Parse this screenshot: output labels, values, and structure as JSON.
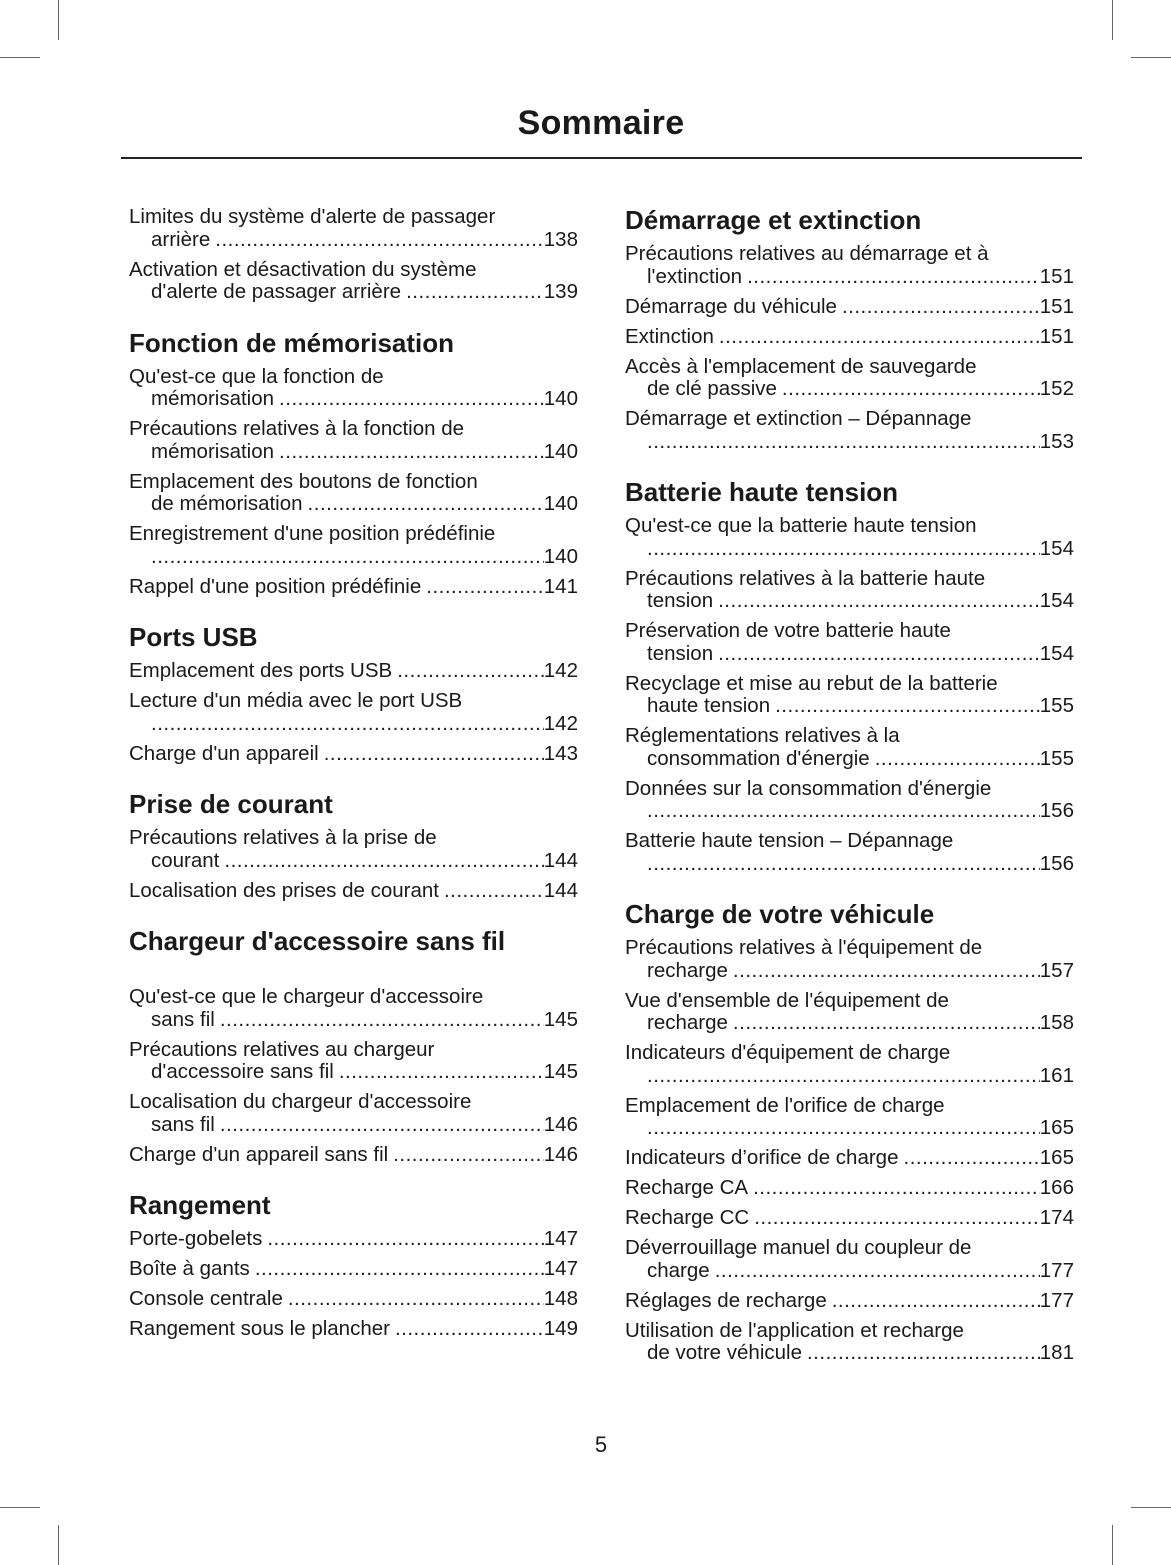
{
  "title": "Sommaire",
  "page_number": "5",
  "columns": [
    [
      {
        "entries": [
          {
            "lines": [
              "Limites du système d'alerte de passager",
              "arrière"
            ],
            "page": "138"
          },
          {
            "lines": [
              "Activation et désactivation du système",
              "d'alerte de passager arrière"
            ],
            "page": "139"
          }
        ]
      },
      {
        "heading": "Fonction de mémorisation",
        "entries": [
          {
            "lines": [
              "Qu'est-ce que la fonction de",
              "mémorisation"
            ],
            "page": "140"
          },
          {
            "lines": [
              "Précautions relatives à la fonction de",
              "mémorisation"
            ],
            "page": "140"
          },
          {
            "lines": [
              "Emplacement des boutons de fonction",
              "de mémorisation"
            ],
            "page": "140"
          },
          {
            "lines": [
              "Enregistrement d'une position prédéfinie",
              ""
            ],
            "page": "140"
          },
          {
            "lines": [
              "Rappel d'une position prédéfinie"
            ],
            "page": "141"
          }
        ]
      },
      {
        "heading": "Ports USB",
        "entries": [
          {
            "lines": [
              "Emplacement des ports USB"
            ],
            "page": "142"
          },
          {
            "lines": [
              "Lecture d'un média avec le port USB",
              ""
            ],
            "page": "142"
          },
          {
            "lines": [
              "Charge d'un appareil"
            ],
            "page": "143"
          }
        ]
      },
      {
        "heading": "Prise de courant",
        "entries": [
          {
            "lines": [
              "Précautions relatives à la prise de",
              "courant"
            ],
            "page": "144"
          },
          {
            "lines": [
              "Localisation des prises de courant"
            ],
            "page": "144"
          }
        ]
      },
      {
        "heading": "Chargeur d'accessoire sans fil",
        "extra_gap": true,
        "entries": [
          {
            "lines": [
              "Qu'est-ce que le chargeur d'accessoire",
              "sans fil"
            ],
            "page": "145"
          },
          {
            "lines": [
              "Précautions relatives au chargeur",
              "d'accessoire sans fil"
            ],
            "page": "145"
          },
          {
            "lines": [
              "Localisation du chargeur d'accessoire",
              "sans fil"
            ],
            "page": "146"
          },
          {
            "lines": [
              "Charge d'un appareil sans fil"
            ],
            "page": "146"
          }
        ]
      },
      {
        "heading": "Rangement",
        "entries": [
          {
            "lines": [
              "Porte-gobelets"
            ],
            "page": "147"
          },
          {
            "lines": [
              "Boîte à gants"
            ],
            "page": "147"
          },
          {
            "lines": [
              "Console centrale"
            ],
            "page": "148"
          },
          {
            "lines": [
              "Rangement sous le plancher"
            ],
            "page": "149"
          }
        ]
      }
    ],
    [
      {
        "heading": "Démarrage et extinction",
        "entries": [
          {
            "lines": [
              "Précautions relatives au démarrage et à",
              "l'extinction"
            ],
            "page": "151"
          },
          {
            "lines": [
              "Démarrage du véhicule"
            ],
            "page": "151"
          },
          {
            "lines": [
              "Extinction"
            ],
            "page": "151"
          },
          {
            "lines": [
              "Accès à l'emplacement de sauvegarde",
              "de clé passive"
            ],
            "page": "152"
          },
          {
            "lines": [
              "Démarrage et extinction – Dépannage",
              ""
            ],
            "page": "153"
          }
        ]
      },
      {
        "heading": "Batterie haute tension",
        "entries": [
          {
            "lines": [
              "Qu'est-ce que la batterie haute tension",
              ""
            ],
            "page": "154"
          },
          {
            "lines": [
              "Précautions relatives à la batterie haute",
              "tension"
            ],
            "page": "154"
          },
          {
            "lines": [
              "Préservation de votre batterie haute",
              "tension"
            ],
            "page": "154"
          },
          {
            "lines": [
              "Recyclage et mise au rebut de la batterie",
              "haute tension"
            ],
            "page": "155"
          },
          {
            "lines": [
              "Réglementations relatives à la",
              "consommation d'énergie"
            ],
            "page": "155"
          },
          {
            "lines": [
              "Données sur la consommation d'énergie",
              ""
            ],
            "page": "156"
          },
          {
            "lines": [
              "Batterie haute tension – Dépannage",
              ""
            ],
            "page": "156"
          }
        ]
      },
      {
        "heading": "Charge de votre véhicule",
        "entries": [
          {
            "lines": [
              "Précautions relatives à l'équipement de",
              "recharge"
            ],
            "page": "157"
          },
          {
            "lines": [
              "Vue d'ensemble de l'équipement de",
              "recharge"
            ],
            "page": "158"
          },
          {
            "lines": [
              "Indicateurs d'équipement de charge",
              ""
            ],
            "page": "161"
          },
          {
            "lines": [
              "Emplacement de l'orifice de charge",
              ""
            ],
            "page": "165"
          },
          {
            "lines": [
              "Indicateurs d’orifice de charge"
            ],
            "page": "165"
          },
          {
            "lines": [
              "Recharge CA"
            ],
            "page": "166"
          },
          {
            "lines": [
              "Recharge CC"
            ],
            "page": "174"
          },
          {
            "lines": [
              "Déverrouillage manuel du coupleur de",
              "charge"
            ],
            "page": "177"
          },
          {
            "lines": [
              "Réglages de recharge"
            ],
            "page": "177"
          },
          {
            "lines": [
              "Utilisation de l'application et recharge",
              "de votre véhicule"
            ],
            "page": "181"
          }
        ]
      }
    ]
  ]
}
